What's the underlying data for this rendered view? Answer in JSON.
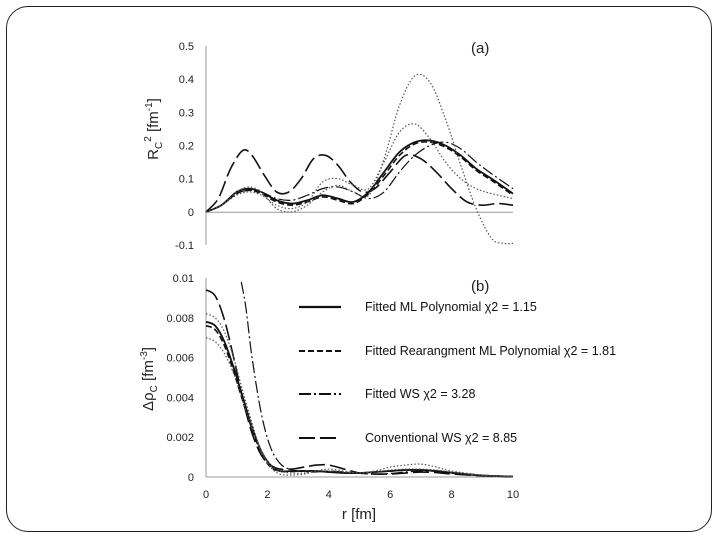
{
  "chart_data": [
    {
      "type": "line",
      "panel_label": "(a)",
      "ylabel_base": "R",
      "ylabel_sub": "C",
      "ylabel_sup": "2",
      "ylabel_unit": " [fm",
      "ylabel_unit_sup": "-1",
      "ylabel_close": "]",
      "xlim": [
        0,
        10
      ],
      "ylim": [
        -0.1,
        0.5
      ],
      "x_ticks": [
        0,
        2,
        4,
        6,
        8,
        10
      ],
      "y_ticks": [
        "-0.1",
        "0",
        "0.1",
        "0.2",
        "0.3",
        "0.4",
        "0.5"
      ],
      "y_tick_values": [
        -0.1,
        0,
        0.1,
        0.2,
        0.3,
        0.4,
        0.5
      ],
      "series": [
        {
          "name": "Fitted ML Polynomial χ2 = 1.15",
          "style": "solid",
          "x": [
            0,
            0.5,
            1,
            1.4,
            1.8,
            2.3,
            2.8,
            3.3,
            3.8,
            4.3,
            4.8,
            5.3,
            5.8,
            6.3,
            6.8,
            7.3,
            7.8,
            8.3,
            8.8,
            9.3,
            10
          ],
          "y": [
            0,
            0.02,
            0.06,
            0.07,
            0.06,
            0.035,
            0.025,
            0.035,
            0.05,
            0.04,
            0.03,
            0.06,
            0.12,
            0.18,
            0.21,
            0.215,
            0.2,
            0.17,
            0.13,
            0.1,
            0.055
          ]
        },
        {
          "name": "Fitted Rearangment ML Polynomial χ2 = 1.81",
          "style": "dashed",
          "x": [
            0,
            0.5,
            1,
            1.4,
            1.8,
            2.3,
            2.8,
            3.3,
            3.8,
            4.3,
            4.8,
            5.3,
            5.8,
            6.3,
            6.8,
            7.3,
            7.8,
            8.3,
            8.8,
            9.3,
            10
          ],
          "y": [
            0,
            0.02,
            0.055,
            0.065,
            0.055,
            0.03,
            0.02,
            0.03,
            0.045,
            0.035,
            0.025,
            0.055,
            0.11,
            0.17,
            0.205,
            0.21,
            0.195,
            0.165,
            0.125,
            0.095,
            0.05
          ]
        },
        {
          "name": "Fitted WS χ2 = 3.28",
          "style": "dashdot",
          "x": [
            0,
            0.5,
            1,
            1.4,
            1.8,
            2.3,
            2.8,
            3.3,
            3.8,
            4.3,
            4.8,
            5.3,
            5.8,
            6.3,
            6.8,
            7.3,
            7.8,
            8.3,
            8.8,
            9.3,
            10
          ],
          "y": [
            0,
            0.02,
            0.055,
            0.065,
            0.06,
            0.04,
            0.035,
            0.05,
            0.07,
            0.075,
            0.06,
            0.04,
            0.06,
            0.12,
            0.17,
            0.2,
            0.21,
            0.19,
            0.15,
            0.115,
            0.07
          ]
        },
        {
          "name": "Conventional WS χ2 = 8.85",
          "style": "longdash",
          "x": [
            0,
            0.4,
            0.8,
            1.2,
            1.5,
            1.9,
            2.3,
            2.7,
            3.1,
            3.5,
            3.9,
            4.3,
            4.7,
            5.1,
            5.5,
            6,
            6.5,
            7,
            7.5,
            8,
            8.5,
            9,
            9.5,
            10
          ],
          "y": [
            0,
            0.04,
            0.13,
            0.185,
            0.17,
            0.11,
            0.06,
            0.06,
            0.1,
            0.16,
            0.17,
            0.14,
            0.09,
            0.06,
            0.07,
            0.12,
            0.17,
            0.16,
            0.12,
            0.07,
            0.03,
            0.02,
            0.025,
            0.02
          ]
        },
        {
          "name": "Dotted curve A",
          "style": "dotted",
          "in_legend": false,
          "x": [
            0,
            0.5,
            1,
            1.4,
            1.8,
            2.3,
            2.8,
            3.3,
            3.8,
            4.3,
            4.8,
            5.3,
            5.8,
            6.3,
            6.8,
            7.3,
            7.8,
            8.3,
            8.8,
            9.3,
            9.7,
            10
          ],
          "y": [
            0,
            0.02,
            0.06,
            0.075,
            0.06,
            0.01,
            0.0,
            0.02,
            0.06,
            0.08,
            0.06,
            0.05,
            0.16,
            0.32,
            0.41,
            0.39,
            0.28,
            0.14,
            0.01,
            -0.08,
            -0.095,
            -0.095
          ]
        },
        {
          "name": "Dotted curve B",
          "style": "dotted",
          "in_legend": false,
          "x": [
            0,
            0.5,
            1,
            1.4,
            1.8,
            2.3,
            2.8,
            3.3,
            3.8,
            4.3,
            4.8,
            5.3,
            5.8,
            6.3,
            6.8,
            7.3,
            7.8,
            8.3,
            8.8,
            9.3,
            10
          ],
          "y": [
            0,
            0.02,
            0.05,
            0.06,
            0.05,
            0.02,
            0.01,
            0.03,
            0.09,
            0.1,
            0.08,
            0.07,
            0.15,
            0.24,
            0.265,
            0.22,
            0.15,
            0.1,
            0.07,
            0.055,
            0.04
          ]
        }
      ]
    },
    {
      "type": "line",
      "panel_label": "(b)",
      "ylabel_base": "Δρ",
      "ylabel_sub": "C",
      "ylabel_unit": " [fm",
      "ylabel_unit_sup": "-3",
      "ylabel_close": "]",
      "xlabel": "r [fm]",
      "xlim": [
        0,
        10
      ],
      "ylim": [
        0,
        0.01
      ],
      "x_ticks": [
        0,
        2,
        4,
        6,
        8,
        10
      ],
      "y_ticks": [
        "0",
        "0.002",
        "0.004",
        "0.006",
        "0.008",
        "0.01"
      ],
      "y_tick_values": [
        0,
        0.002,
        0.004,
        0.006,
        0.008,
        0.01
      ],
      "series": [
        {
          "name": "Fitted ML Polynomial χ2 = 1.15",
          "style": "solid",
          "x": [
            0,
            0.3,
            0.6,
            0.9,
            1.2,
            1.5,
            1.8,
            2.1,
            2.4,
            2.8,
            3.2,
            3.6,
            4,
            4.5,
            5,
            5.5,
            6,
            6.5,
            7,
            7.5,
            8,
            9,
            10
          ],
          "y": [
            0.0078,
            0.0076,
            0.0068,
            0.0055,
            0.004,
            0.0025,
            0.0013,
            0.0006,
            0.0003,
            0.0003,
            0.0003,
            0.0003,
            0.00025,
            0.0002,
            0.0002,
            0.00025,
            0.0003,
            0.00035,
            0.00035,
            0.0003,
            0.00022,
            8e-05,
            2e-05
          ]
        },
        {
          "name": "Fitted Rearangment ML Polynomial χ2 = 1.81",
          "style": "dashed",
          "x": [
            0,
            0.3,
            0.6,
            0.9,
            1.2,
            1.5,
            1.8,
            2.1,
            2.4,
            2.8,
            3.2,
            3.6,
            4,
            4.5,
            5,
            5.5,
            6,
            6.5,
            7,
            7.5,
            8,
            9,
            10
          ],
          "y": [
            0.0076,
            0.0074,
            0.0066,
            0.0053,
            0.0038,
            0.0024,
            0.0012,
            0.0005,
            0.0003,
            0.00028,
            0.0003,
            0.0003,
            0.00025,
            0.0002,
            0.0002,
            0.00025,
            0.0003,
            0.00035,
            0.00035,
            0.0003,
            0.0002,
            7e-05,
            2e-05
          ]
        },
        {
          "name": "Fitted WS χ2 = 3.28",
          "style": "dashdot",
          "x": [
            1.15,
            1.3,
            1.5,
            1.8,
            2.1,
            2.4,
            2.7,
            3,
            3.5,
            4,
            4.5,
            5,
            5.5,
            6,
            6.5,
            7,
            7.5,
            8,
            9,
            10
          ],
          "y": [
            0.0098,
            0.0085,
            0.006,
            0.0032,
            0.0015,
            0.0007,
            0.0004,
            0.0003,
            0.00025,
            0.0003,
            0.00025,
            0.00018,
            0.00015,
            0.00018,
            0.00025,
            0.0003,
            0.00028,
            0.0002,
            8e-05,
            3e-05
          ]
        },
        {
          "name": "Conventional WS χ2 = 8.85",
          "style": "longdash",
          "x": [
            0,
            0.3,
            0.6,
            0.9,
            1.2,
            1.5,
            1.8,
            2.1,
            2.4,
            2.8,
            3.2,
            3.6,
            4,
            4.5,
            5,
            5.5,
            6,
            6.5,
            7,
            7.5,
            8,
            9,
            10
          ],
          "y": [
            0.0094,
            0.0091,
            0.0079,
            0.006,
            0.0039,
            0.0022,
            0.0011,
            0.0006,
            0.0004,
            0.0004,
            0.0005,
            0.0006,
            0.0006,
            0.0004,
            0.0002,
            0.00015,
            0.00015,
            0.0002,
            0.00025,
            0.00022,
            0.00015,
            6e-05,
            2e-05
          ]
        },
        {
          "name": "Dotted curve A",
          "style": "dotted",
          "in_legend": false,
          "x": [
            0,
            0.3,
            0.6,
            0.9,
            1.2,
            1.5,
            1.8,
            2.1,
            2.4,
            2.8,
            3.2,
            3.6,
            4,
            4.5,
            5,
            5.5,
            6,
            6.5,
            7,
            7.5,
            8,
            9,
            10
          ],
          "y": [
            0.0082,
            0.008,
            0.0073,
            0.006,
            0.0043,
            0.0027,
            0.0013,
            0.0005,
            0.00015,
            0.0001,
            0.00015,
            0.0003,
            0.0004,
            0.0003,
            0.0002,
            0.0003,
            0.0005,
            0.0006,
            0.00065,
            0.0005,
            0.0003,
            0.0001,
            3e-05
          ]
        },
        {
          "name": "Dotted curve B",
          "style": "dotted",
          "in_legend": false,
          "x": [
            0,
            0.3,
            0.6,
            0.9,
            1.2,
            1.5,
            1.8,
            2.1,
            2.4,
            2.8,
            3.2,
            3.6,
            4,
            4.5,
            5,
            5.5,
            6,
            6.5,
            7,
            7.5,
            8,
            9,
            10
          ],
          "y": [
            0.007,
            0.0068,
            0.0062,
            0.0052,
            0.0038,
            0.0025,
            0.0013,
            0.0006,
            0.0003,
            0.0002,
            0.0002,
            0.0003,
            0.0003,
            0.00025,
            0.0002,
            0.00025,
            0.00035,
            0.0004,
            0.0004,
            0.00035,
            0.00025,
            8e-05,
            2e-05
          ]
        }
      ]
    }
  ],
  "legend": [
    {
      "label": "Fitted ML Polynomial χ2 = 1.15",
      "style": "solid"
    },
    {
      "label": "Fitted Rearangment ML Polynomial χ2 = 1.81",
      "style": "dashed"
    },
    {
      "label": "Fitted WS χ2 = 3.28",
      "style": "dashdot"
    },
    {
      "label": "Conventional WS χ2 = 8.85",
      "style": "longdash"
    }
  ]
}
